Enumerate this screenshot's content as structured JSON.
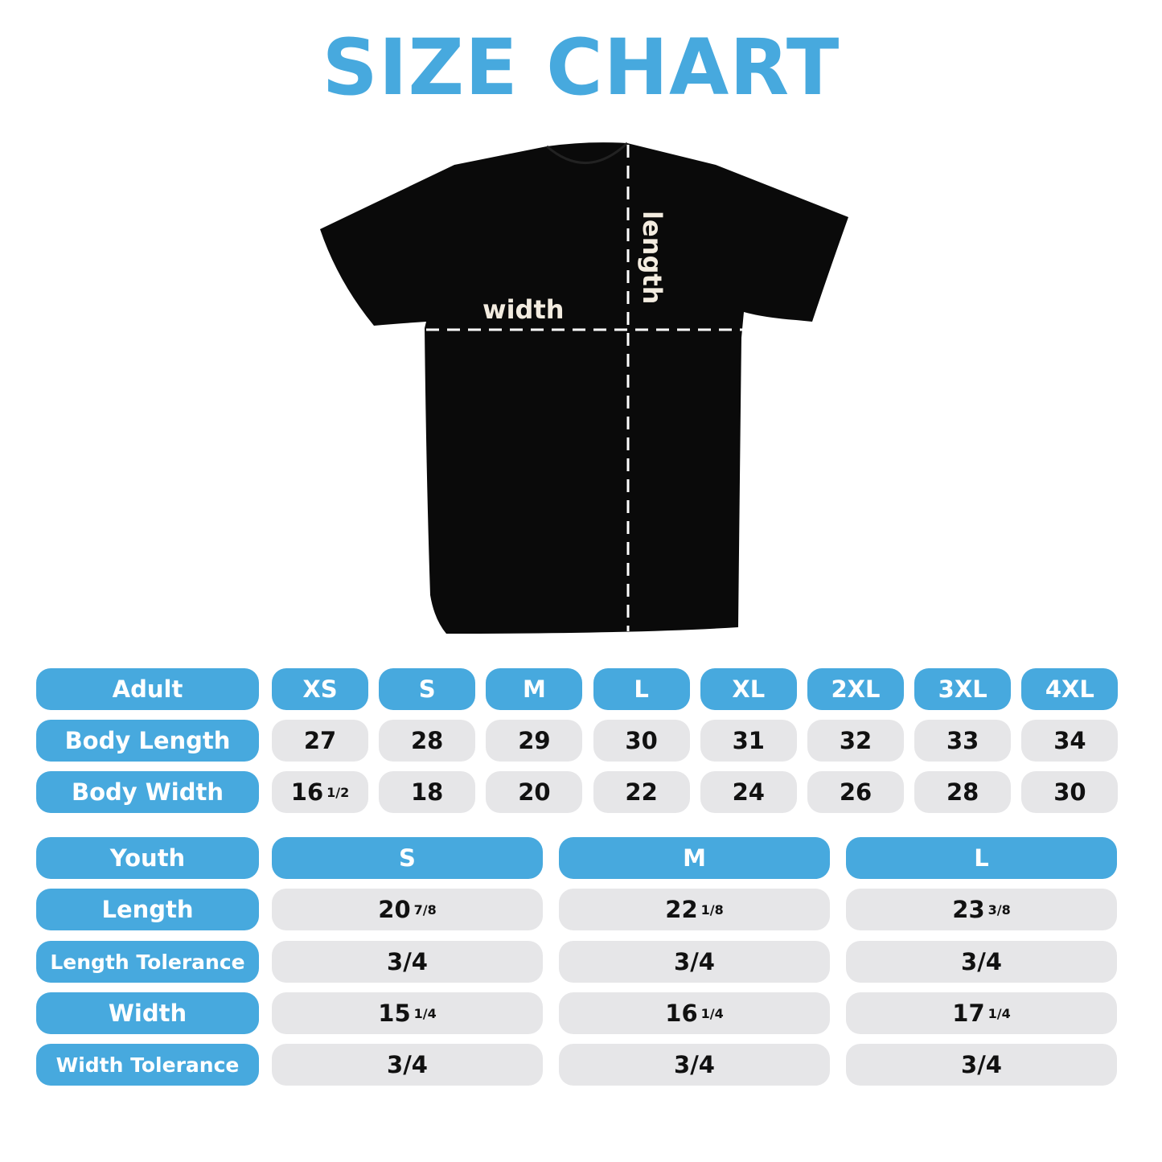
{
  "title": "SIZE CHART",
  "shirt": {
    "width_label": "width",
    "length_label": "length",
    "color": "#0a0a0a"
  },
  "colors": {
    "header_blue": "#47a9de",
    "cell_gray": "#e6e6e8"
  },
  "adult": {
    "header": "Adult",
    "sizes": [
      "XS",
      "S",
      "M",
      "L",
      "XL",
      "2XL",
      "3XL",
      "4XL"
    ],
    "rows": [
      {
        "label": "Body Length",
        "values": [
          {
            "whole": "27"
          },
          {
            "whole": "28"
          },
          {
            "whole": "29"
          },
          {
            "whole": "30"
          },
          {
            "whole": "31"
          },
          {
            "whole": "32"
          },
          {
            "whole": "33"
          },
          {
            "whole": "34"
          }
        ]
      },
      {
        "label": "Body Width",
        "values": [
          {
            "whole": "16",
            "frac": "1/2"
          },
          {
            "whole": "18"
          },
          {
            "whole": "20"
          },
          {
            "whole": "22"
          },
          {
            "whole": "24"
          },
          {
            "whole": "26"
          },
          {
            "whole": "28"
          },
          {
            "whole": "30"
          }
        ]
      }
    ]
  },
  "youth": {
    "header": "Youth",
    "sizes": [
      "S",
      "M",
      "L"
    ],
    "rows": [
      {
        "label": "Length",
        "values": [
          {
            "whole": "20",
            "frac": "7/8"
          },
          {
            "whole": "22",
            "frac": "1/8"
          },
          {
            "whole": "23",
            "frac": "3/8"
          }
        ]
      },
      {
        "label": "Length Tolerance",
        "values": [
          {
            "whole": "3/4"
          },
          {
            "whole": "3/4"
          },
          {
            "whole": "3/4"
          }
        ]
      },
      {
        "label": "Width",
        "values": [
          {
            "whole": "15",
            "frac": "1/4"
          },
          {
            "whole": "16",
            "frac": "1/4"
          },
          {
            "whole": "17",
            "frac": "1/4"
          }
        ]
      },
      {
        "label": "Width Tolerance",
        "values": [
          {
            "whole": "3/4"
          },
          {
            "whole": "3/4"
          },
          {
            "whole": "3/4"
          }
        ]
      }
    ]
  }
}
